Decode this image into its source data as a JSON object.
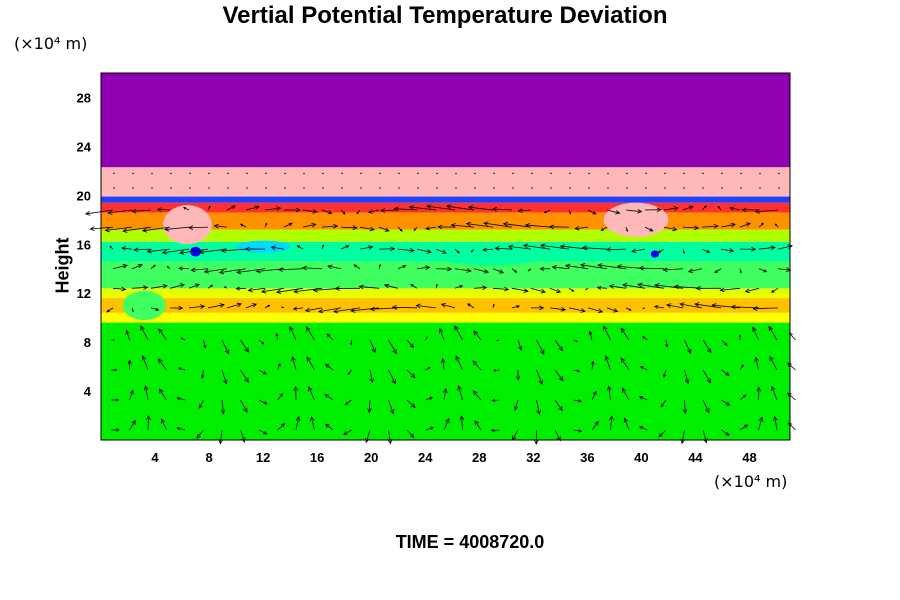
{
  "chart_data": {
    "type": "heatmap",
    "title": "Vertial Potential Temperature Deviation",
    "ylabel": "Height",
    "yunit": "(×10⁴ m)",
    "xunit": "(×10⁴ m)",
    "x_ticks": [
      4,
      8,
      12,
      16,
      20,
      24,
      28,
      32,
      36,
      40,
      44,
      48
    ],
    "y_ticks": [
      4,
      8,
      12,
      16,
      20,
      24,
      28
    ],
    "xlim": [
      0,
      51
    ],
    "ylim": [
      0,
      30
    ],
    "bands": [
      {
        "y0": 0,
        "y1": 9.6,
        "color": "#00ee00"
      },
      {
        "y0": 9.6,
        "y1": 10.4,
        "color": "#ffff00"
      },
      {
        "y0": 10.4,
        "y1": 11.6,
        "color": "#ffc000"
      },
      {
        "y0": 11.6,
        "y1": 12.4,
        "color": "#e8ff00"
      },
      {
        "y0": 12.4,
        "y1": 14.6,
        "color": "#40ff60"
      },
      {
        "y0": 14.6,
        "y1": 16.2,
        "color": "#00ffa0"
      },
      {
        "y0": 16.2,
        "y1": 17.2,
        "color": "#b0ff00"
      },
      {
        "y0": 17.2,
        "y1": 18.6,
        "color": "#ff9000"
      },
      {
        "y0": 18.6,
        "y1": 19.4,
        "color": "#ff3030"
      },
      {
        "y0": 19.4,
        "y1": 19.9,
        "color": "#2040ff"
      },
      {
        "y0": 19.9,
        "y1": 22.3,
        "color": "#ffb8b8"
      },
      {
        "y0": 22.3,
        "y1": 30,
        "color": "#9000b0"
      }
    ],
    "blobs": [
      {
        "x": 6.4,
        "y": 17.6,
        "rx": 1.8,
        "ry": 1.6,
        "color": "#ffb8b8"
      },
      {
        "x": 39.6,
        "y": 18.0,
        "rx": 2.4,
        "ry": 1.4,
        "color": "#ffb8b8"
      },
      {
        "x": 7.0,
        "y": 15.4,
        "rx": 0.4,
        "ry": 0.4,
        "color": "#0000ff"
      },
      {
        "x": 41.0,
        "y": 15.2,
        "rx": 0.3,
        "ry": 0.3,
        "color": "#0000ff"
      },
      {
        "x": 3.2,
        "y": 11.0,
        "rx": 1.6,
        "ry": 1.2,
        "color": "#40ff60"
      },
      {
        "x": 12.0,
        "y": 15.8,
        "rx": 2.0,
        "ry": 0.5,
        "color": "#00d8ff"
      },
      {
        "x": 29.0,
        "y": 15.2,
        "rx": 4.5,
        "ry": 0.9,
        "color": "#00ffa0"
      }
    ]
  },
  "time_label": "TIME = 4008720.0",
  "colors": {
    "background": "#ffffff",
    "axis": "#000000",
    "vector": "#000000"
  }
}
